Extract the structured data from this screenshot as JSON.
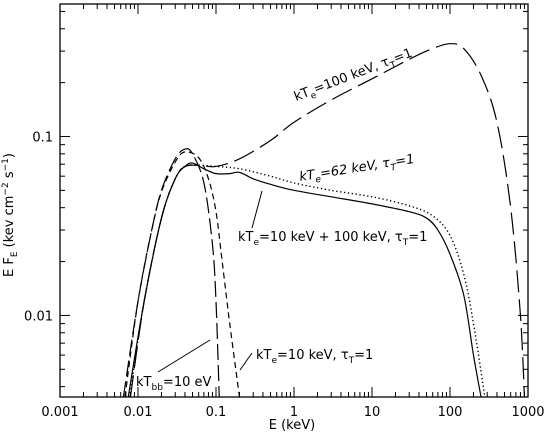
{
  "chart_data": {
    "type": "line",
    "xlabel": "E (keV)",
    "ylabel": "E F",
    "ylabel_sub": "E",
    "ylabel_units": "(kev cm",
    "ylabel_exp1": "−2",
    "ylabel_mid": " s",
    "ylabel_exp2": "−1",
    "ylabel_close": ")",
    "xscale": "log",
    "yscale": "log",
    "xlim": [
      0.001,
      1000
    ],
    "ylim": [
      0.0035,
      0.55
    ],
    "x_ticks": [
      {
        "value": 0.001,
        "label": "0.001"
      },
      {
        "value": 0.01,
        "label": "0.01"
      },
      {
        "value": 0.1,
        "label": "0.1"
      },
      {
        "value": 1,
        "label": "1"
      },
      {
        "value": 10,
        "label": "10"
      },
      {
        "value": 100,
        "label": "100"
      },
      {
        "value": 1000,
        "label": "1000"
      }
    ],
    "y_ticks": [
      {
        "value": 0.01,
        "label": "0.01"
      },
      {
        "value": 0.1,
        "label": "0.1"
      }
    ],
    "series": [
      {
        "style": "long-dash",
        "points": [
          [
            0.0065,
            0.0035
          ],
          [
            0.01,
            0.012
          ],
          [
            0.015,
            0.03
          ],
          [
            0.02,
            0.05
          ],
          [
            0.03,
            0.075
          ],
          [
            0.04,
            0.085
          ],
          [
            0.05,
            0.08
          ],
          [
            0.07,
            0.055
          ],
          [
            0.09,
            0.025
          ],
          [
            0.1,
            0.012
          ],
          [
            0.11,
            0.0035
          ]
        ]
      },
      {
        "style": "short-dash",
        "points": [
          [
            0.0068,
            0.0035
          ],
          [
            0.01,
            0.012
          ],
          [
            0.015,
            0.03
          ],
          [
            0.02,
            0.049
          ],
          [
            0.03,
            0.072
          ],
          [
            0.04,
            0.082
          ],
          [
            0.06,
            0.076
          ],
          [
            0.08,
            0.058
          ],
          [
            0.1,
            0.038
          ],
          [
            0.12,
            0.02
          ],
          [
            0.15,
            0.009
          ],
          [
            0.2,
            0.0035
          ]
        ]
      },
      {
        "style": "medium-dash",
        "points": [
          [
            0.008,
            0.0035
          ],
          [
            0.012,
            0.012
          ],
          [
            0.02,
            0.035
          ],
          [
            0.03,
            0.058
          ],
          [
            0.04,
            0.068
          ],
          [
            0.06,
            0.069
          ],
          [
            0.1,
            0.068
          ],
          [
            0.2,
            0.075
          ],
          [
            0.5,
            0.095
          ],
          [
            1,
            0.12
          ],
          [
            3,
            0.16
          ],
          [
            10,
            0.21
          ],
          [
            30,
            0.27
          ],
          [
            60,
            0.31
          ],
          [
            100,
            0.33
          ],
          [
            150,
            0.31
          ],
          [
            250,
            0.22
          ],
          [
            400,
            0.12
          ],
          [
            600,
            0.04
          ],
          [
            800,
            0.01
          ],
          [
            900,
            0.0035
          ]
        ]
      },
      {
        "style": "solid",
        "points": [
          [
            0.0075,
            0.0035
          ],
          [
            0.012,
            0.012
          ],
          [
            0.02,
            0.035
          ],
          [
            0.03,
            0.058
          ],
          [
            0.04,
            0.068
          ],
          [
            0.05,
            0.071
          ],
          [
            0.07,
            0.066
          ],
          [
            0.1,
            0.062
          ],
          [
            0.15,
            0.062
          ],
          [
            0.2,
            0.063
          ],
          [
            0.3,
            0.058
          ],
          [
            0.5,
            0.054
          ],
          [
            1,
            0.05
          ],
          [
            3,
            0.046
          ],
          [
            10,
            0.042
          ],
          [
            30,
            0.038
          ],
          [
            50,
            0.035
          ],
          [
            70,
            0.03
          ],
          [
            100,
            0.022
          ],
          [
            150,
            0.013
          ],
          [
            200,
            0.006
          ],
          [
            250,
            0.0035
          ]
        ]
      },
      {
        "style": "dotted",
        "points": [
          [
            0.0078,
            0.0035
          ],
          [
            0.012,
            0.012
          ],
          [
            0.02,
            0.035
          ],
          [
            0.03,
            0.058
          ],
          [
            0.04,
            0.068
          ],
          [
            0.06,
            0.069
          ],
          [
            0.1,
            0.068
          ],
          [
            0.2,
            0.066
          ],
          [
            0.5,
            0.06
          ],
          [
            1,
            0.055
          ],
          [
            3,
            0.05
          ],
          [
            10,
            0.046
          ],
          [
            30,
            0.041
          ],
          [
            60,
            0.036
          ],
          [
            100,
            0.028
          ],
          [
            150,
            0.017
          ],
          [
            200,
            0.009
          ],
          [
            280,
            0.0035
          ]
        ]
      }
    ],
    "annotations": [
      {
        "text": "kT",
        "sub": "e",
        "rest": "=100 keV, τ",
        "sub2": "T",
        "tail": "=1"
      },
      {
        "text": "kT",
        "sub": "e",
        "rest": "=62 keV, τ",
        "sub2": "T",
        "tail": "=1"
      },
      {
        "text": "kT",
        "sub": "e",
        "rest": "=10 keV + 100 keV, τ",
        "sub2": "T",
        "tail": "=1"
      },
      {
        "text": "kT",
        "sub": "bb",
        "rest": "=10 eV",
        "sub2": "",
        "tail": ""
      },
      {
        "text": "kT",
        "sub": "e",
        "rest": "=10 keV, τ",
        "sub2": "T",
        "tail": "=1"
      }
    ]
  }
}
